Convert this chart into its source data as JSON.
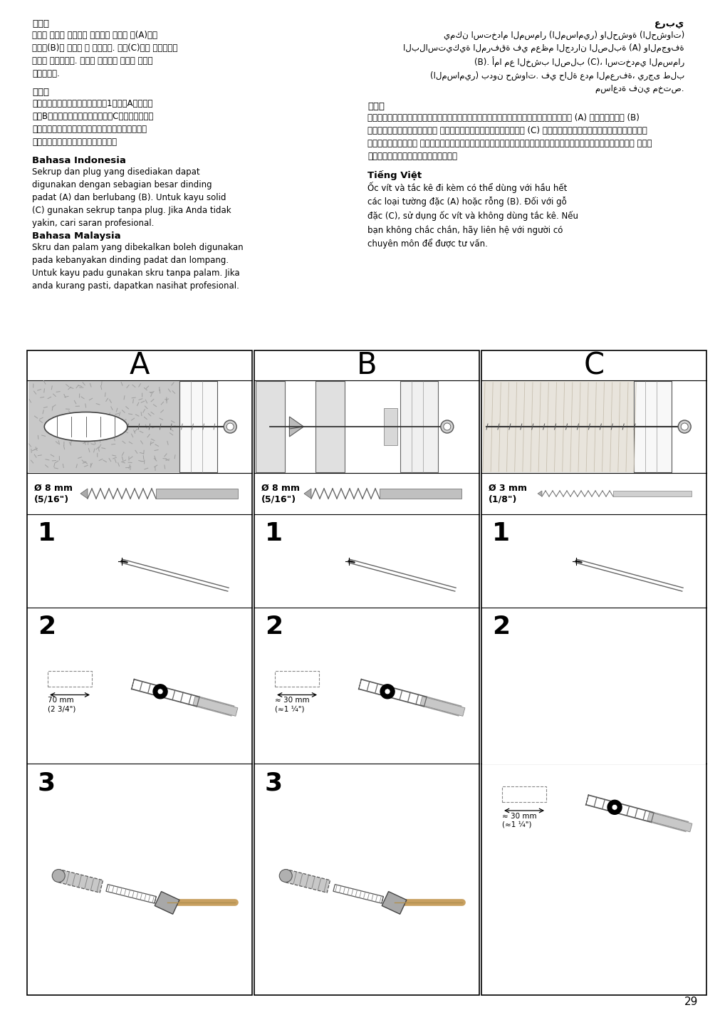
{
  "bg_color": "#ffffff",
  "page_number": "29",
  "text_section": {
    "korean_title": "한국어",
    "korean_body": "제공된 나사와 플러그는 대부분의 단단한 벽(A)이나\n중공벽(B)에 사용할 수 있습니다. 원목(C)에는 플러그없이\n나사만 사용하세요. 반드시 전문가의 조언을 구하고\n설치하세요.",
    "japanese_title": "日本語",
    "japanese_body": "付属のネジとプラグはほとんどの1枚壁（A）や中空\n壁（B）に使用できます。無垢材（C）にはプラグな\nしネジをお使いください。取り付けに適したネジに\n関しては、専門店にご相談ください。",
    "bahasa_indonesia_title": "Bahasa Indonesia",
    "bahasa_indonesia_body": "Sekrup dan plug yang disediakan dapat\ndigunakan dengan sebagian besar dinding\npadat (A) dan berlubang (B). Untuk kayu solid\n(C) gunakan sekrup tanpa plug. Jika Anda tidak\nyakin, cari saran profesional.",
    "bahasa_malaysia_title": "Bahasa Malaysia",
    "bahasa_malaysia_body": "Skru dan palam yang dibekalkan boleh digunakan\npada kebanyakan dinding padat dan lompang.\nUntuk kayu padu gunakan skru tanpa palam. Jika\nanda kurang pasti, dapatkan nasihat profesional.",
    "arabic_title": "عربي",
    "arabic_body": "يمكن استخدام المسمار (المسامير) والحشوة (الحشوات)\nالبلاستيكية المرفقة في معظم الجدران الصلبة (A) والمجوفة\n(B). أما مع الخشب الصلب (C)، استخدمي المسمار\n(المسامير) بدون حشوات. في حالة عدم المعرفة، يرجى طلب\nمساعدة فني مختص.",
    "thai_title": "ไทย",
    "thai_body": "สกรูและพุกที่ให้มาสามารถใช้กับผนังที่แน้ง (A) และกลวง (B)\nได้เป็นส่วนมาก สำหรับผนังไม้แน่น (C) ให้ใช้เฉพาะสกรูโดยไม่\nต้องใช้พุก หากไม่แน่ใจเรื่องการเลือกและใช้วัสดุยึดผนัง ควร\nสอบถามผู้เชี่ยวชาญ",
    "vietnamese_title": "Tiếng Việt",
    "vietnamese_body": "Ốc vít và tắc kê đi kèm có thể dùng với hầu hết\ncác loại tường đặc (A) hoặc rỗng (B). Đối với gỗ\nđặc (C), sử dụng ốc vít và không dùng tắc kê. Nếu\nbạn không chắc chắn, hãy liên hệ với người có\nchuyên môn để được tư vấn."
  },
  "panel_A": {
    "label": "A",
    "drill_size": "Ø 8 mm\n(5/16\")",
    "step2_dim": "70 mm\n(2 3/4\")"
  },
  "panel_B": {
    "label": "B",
    "drill_size": "Ø 8 mm\n(5/16\")",
    "step2_dim": "≈ 30 mm\n(≈1 ¼\")"
  },
  "panel_C": {
    "label": "C",
    "drill_size": "Ø 3 mm\n(1/8\")",
    "step2_dim": "≈ 30 mm\n(≈1 ¼\")"
  }
}
